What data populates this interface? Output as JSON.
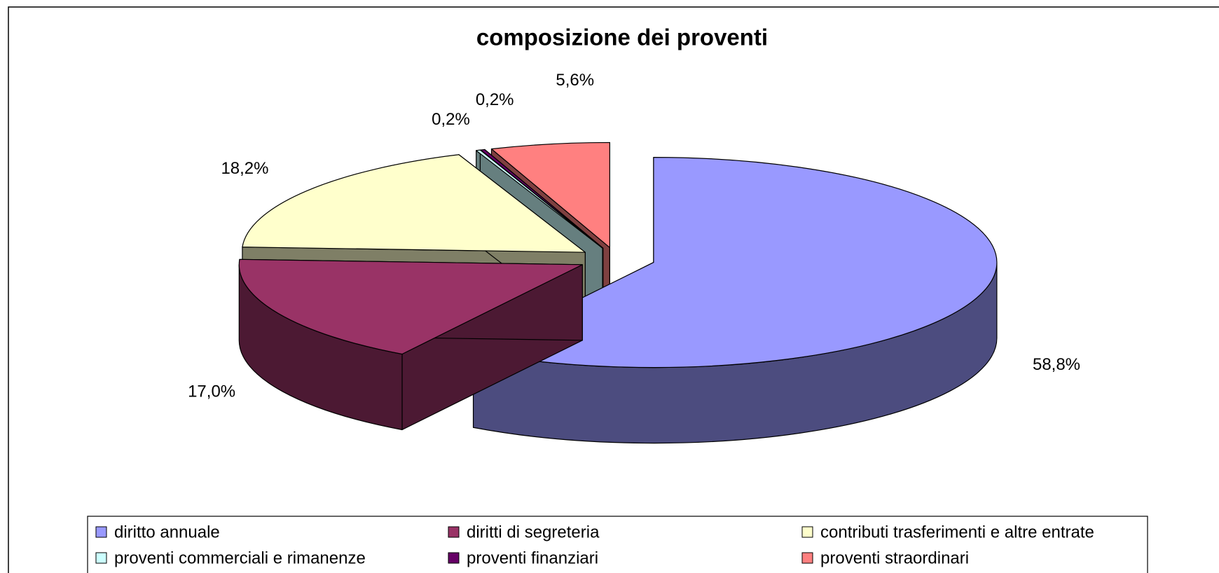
{
  "chart_data": {
    "type": "pie3d",
    "title": "composizione dei proventi",
    "categories": [
      "diritto annuale",
      "diritti di segreteria",
      "contributi trasferimenti e altre entrate",
      "proventi commerciali e rimanenze",
      "proventi finanziari",
      "proventi straordinari"
    ],
    "values": [
      58.8,
      17.0,
      18.2,
      0.2,
      0.2,
      5.6
    ],
    "value_labels": [
      "58,8%",
      "17,0%",
      "18,2%",
      "0,2%",
      "0,2%",
      "5,6%"
    ],
    "colors": [
      "#9999ff",
      "#993366",
      "#ffffcc",
      "#ccffff",
      "#660066",
      "#ff8080"
    ],
    "legend": "bottom"
  }
}
